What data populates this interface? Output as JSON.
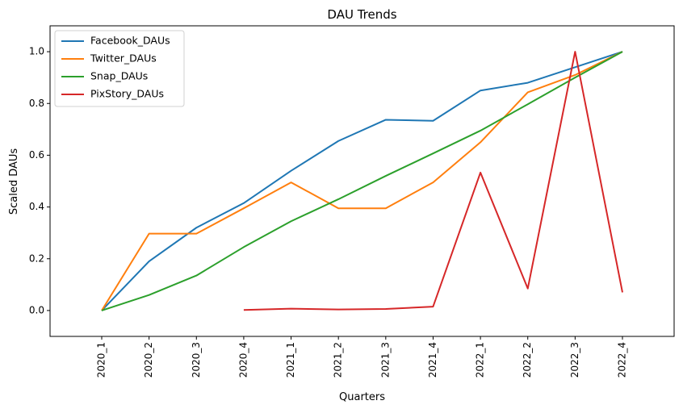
{
  "chart_data": {
    "type": "line",
    "title": "DAU Trends",
    "xlabel": "Quarters",
    "ylabel": "Scaled DAUs",
    "categories": [
      "2020_1",
      "2020_2",
      "2020_3",
      "2020_4",
      "2021_1",
      "2021_2",
      "2021_3",
      "2021_4",
      "2022_1",
      "2022_2",
      "2022_3",
      "2022_4"
    ],
    "ylim": [
      -0.1,
      1.1
    ],
    "yticks": [
      0.0,
      0.2,
      0.4,
      0.6,
      0.8,
      1.0
    ],
    "ytick_labels": [
      "0.0",
      "0.2",
      "0.4",
      "0.6",
      "0.8",
      "1.0"
    ],
    "grid": false,
    "legend_position": "top-left",
    "series": [
      {
        "name": "Facebook_DAUs",
        "color": "#1f77b4",
        "values": [
          0.0,
          0.19,
          0.32,
          0.415,
          0.54,
          0.655,
          0.737,
          0.733,
          0.85,
          0.88,
          0.94,
          1.0
        ]
      },
      {
        "name": "Twitter_DAUs",
        "color": "#ff7f0e",
        "values": [
          0.0,
          0.297,
          0.297,
          0.395,
          0.495,
          0.395,
          0.395,
          0.495,
          0.65,
          0.843,
          0.91,
          1.0
        ]
      },
      {
        "name": "Snap_DAUs",
        "color": "#2ca02c",
        "values": [
          0.0,
          0.06,
          0.135,
          0.245,
          0.345,
          0.43,
          0.52,
          0.607,
          0.695,
          0.797,
          0.9,
          1.0
        ]
      },
      {
        "name": "PixStory_DAUs",
        "color": "#d62728",
        "values": [
          null,
          null,
          null,
          0.002,
          0.007,
          0.004,
          0.006,
          0.015,
          0.533,
          0.085,
          1.0,
          0.07
        ]
      }
    ]
  }
}
